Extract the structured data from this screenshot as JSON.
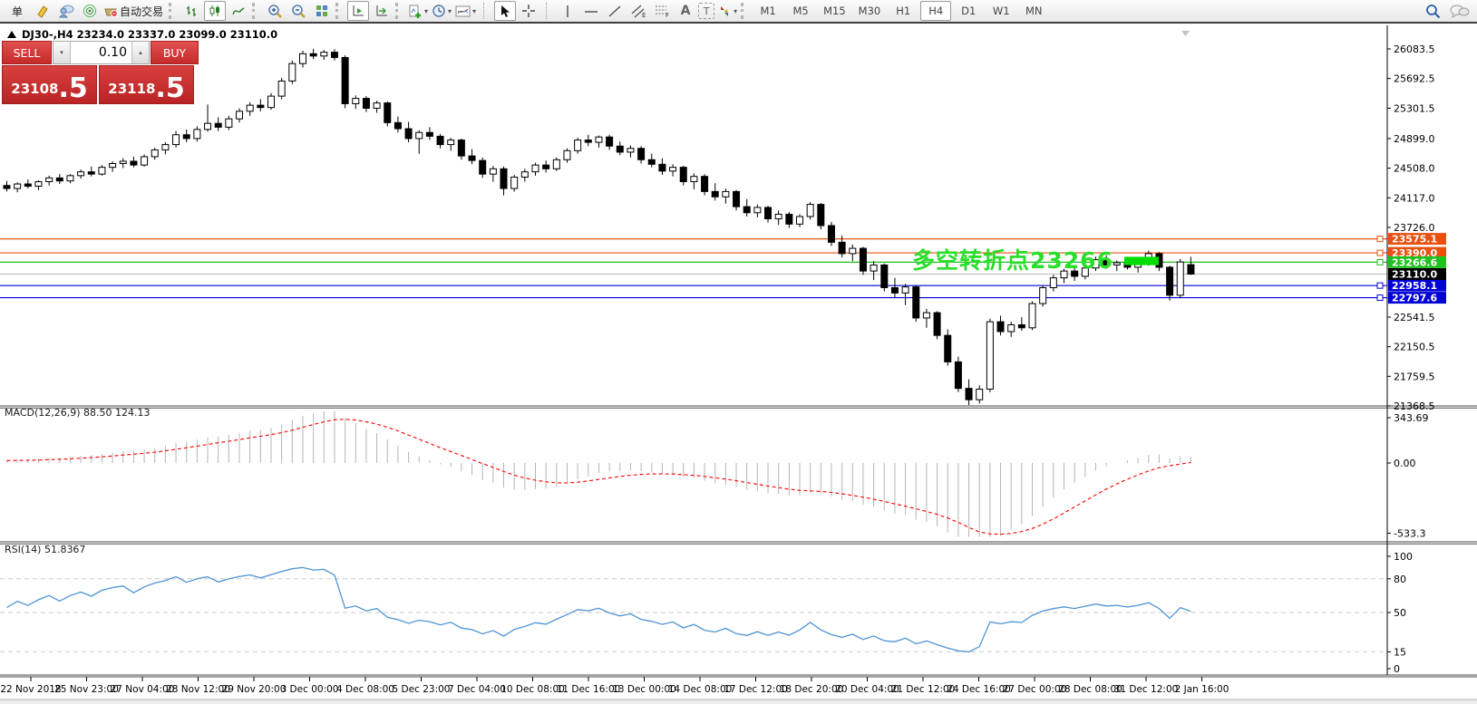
{
  "toolbar": {
    "order_label": "单",
    "autotrading_label": "自动交易",
    "glyphs": {
      "text_tool": "A",
      "label_tool": "T",
      "channel_suffix": "E",
      "fib_suffix": "F"
    },
    "timeframes": [
      "M1",
      "M5",
      "M15",
      "M30",
      "H1",
      "H4",
      "D1",
      "W1",
      "MN"
    ],
    "active_timeframe": "H4"
  },
  "chart": {
    "title": "DJ30-,H4 23234.0 23337.0 23099.0 23110.0",
    "symbol": "DJ30-",
    "period": "H4"
  },
  "trade_panel": {
    "sell_label": "SELL",
    "buy_label": "BUY",
    "volume": "0.10",
    "sell_int": "23108",
    "sell_frac": ".5",
    "buy_int": "23118",
    "buy_frac": ".5"
  },
  "indicator_labels": {
    "macd": "MACD(12,26,9) 88.50 124.13",
    "rsi": "RSI(14) 51.8367"
  },
  "annotation": {
    "text": "多空转折点23266",
    "color": "#2ade2a"
  },
  "chart_data": [
    {
      "type": "candlestick",
      "symbol": "DJ30-",
      "timeframe": "H4",
      "current_open": 23234.0,
      "current_high": 23337.0,
      "current_low": 23099.0,
      "current_close": 23110.0,
      "bid": 23108.5,
      "ask": 23118.5,
      "current_price": 23110.0,
      "y_ticks": [
        26083.5,
        25692.5,
        25301.5,
        24899.0,
        24508.0,
        24117.0,
        23726.0,
        22541.5,
        22150.5,
        21759.5,
        21368.5
      ],
      "price_lines": [
        {
          "price": 23575.1,
          "label": "23575.1",
          "color": "#e8500e"
        },
        {
          "price": 23390.0,
          "label": "23390.0",
          "color": "#e8500e"
        },
        {
          "price": 23266.6,
          "label": "23266.6",
          "color": "#1ec11e"
        },
        {
          "price": 22958.1,
          "label": "22958.1",
          "color": "#0202d6"
        },
        {
          "price": 22797.6,
          "label": "22797.6",
          "color": "#0202d6"
        }
      ],
      "highlight_box": {
        "x": 1240,
        "width": 38,
        "price_top": 23338,
        "price_bottom": 23228,
        "color": "#00dd00"
      },
      "categories": [
        "22 Nov 2018",
        "25 Nov 23:00",
        "27 Nov 04:00",
        "28 Nov 12:00",
        "29 Nov 20:00",
        "3 Dec 00:00",
        "4 Dec 08:00",
        "5 Dec 23:00",
        "7 Dec 04:00",
        "10 Dec 08:00",
        "11 Dec 16:00",
        "13 Dec 00:00",
        "14 Dec 08:00",
        "17 Dec 12:00",
        "18 Dec 20:00",
        "20 Dec 04:00",
        "21 Dec 12:00",
        "24 Dec 16:00",
        "27 Dec 00:00",
        "28 Dec 08:00",
        "31 Dec 12:00",
        "2 Jan 16:00"
      ],
      "ohlc": [
        [
          24280,
          24340,
          24200,
          24240
        ],
        [
          24240,
          24320,
          24190,
          24300
        ],
        [
          24300,
          24360,
          24240,
          24270
        ],
        [
          24270,
          24350,
          24220,
          24330
        ],
        [
          24330,
          24410,
          24280,
          24380
        ],
        [
          24380,
          24430,
          24300,
          24340
        ],
        [
          24340,
          24430,
          24310,
          24410
        ],
        [
          24410,
          24490,
          24370,
          24460
        ],
        [
          24460,
          24530,
          24400,
          24430
        ],
        [
          24430,
          24550,
          24410,
          24520
        ],
        [
          24520,
          24600,
          24460,
          24570
        ],
        [
          24570,
          24640,
          24510,
          24600
        ],
        [
          24600,
          24660,
          24520,
          24550
        ],
        [
          24550,
          24690,
          24530,
          24660
        ],
        [
          24660,
          24780,
          24620,
          24750
        ],
        [
          24750,
          24850,
          24690,
          24820
        ],
        [
          24820,
          25000,
          24780,
          24950
        ],
        [
          24950,
          25020,
          24850,
          24900
        ],
        [
          24900,
          25060,
          24860,
          25020
        ],
        [
          25020,
          25350,
          24990,
          25100
        ],
        [
          25100,
          25180,
          25000,
          25050
        ],
        [
          25050,
          25200,
          25010,
          25160
        ],
        [
          25160,
          25300,
          25110,
          25260
        ],
        [
          25260,
          25380,
          25200,
          25340
        ],
        [
          25340,
          25420,
          25260,
          25310
        ],
        [
          25310,
          25500,
          25280,
          25460
        ],
        [
          25460,
          25700,
          25420,
          25660
        ],
        [
          25660,
          25930,
          25620,
          25890
        ],
        [
          25890,
          26060,
          25840,
          26020
        ],
        [
          26020,
          26083,
          25950,
          25990
        ],
        [
          25990,
          26070,
          25940,
          26040
        ],
        [
          26040,
          26080,
          25930,
          25970
        ],
        [
          25970,
          26000,
          25300,
          25360
        ],
        [
          25360,
          25470,
          25290,
          25430
        ],
        [
          25430,
          25460,
          25250,
          25300
        ],
        [
          25300,
          25400,
          25240,
          25370
        ],
        [
          25370,
          25390,
          25060,
          25110
        ],
        [
          25110,
          25190,
          24980,
          25030
        ],
        [
          25030,
          25120,
          24850,
          24900
        ],
        [
          24900,
          25010,
          24700,
          24980
        ],
        [
          24980,
          25050,
          24880,
          24930
        ],
        [
          24930,
          24960,
          24770,
          24820
        ],
        [
          24820,
          24910,
          24740,
          24880
        ],
        [
          24880,
          24900,
          24620,
          24670
        ],
        [
          24670,
          24760,
          24560,
          24610
        ],
        [
          24610,
          24650,
          24380,
          24430
        ],
        [
          24430,
          24540,
          24330,
          24500
        ],
        [
          24500,
          24530,
          24150,
          24240
        ],
        [
          24240,
          24420,
          24200,
          24390
        ],
        [
          24390,
          24500,
          24330,
          24460
        ],
        [
          24460,
          24580,
          24410,
          24550
        ],
        [
          24550,
          24610,
          24450,
          24500
        ],
        [
          24500,
          24650,
          24470,
          24620
        ],
        [
          24620,
          24770,
          24580,
          24740
        ],
        [
          24740,
          24910,
          24700,
          24880
        ],
        [
          24880,
          24950,
          24800,
          24850
        ],
        [
          24850,
          24940,
          24780,
          24920
        ],
        [
          24920,
          24950,
          24750,
          24800
        ],
        [
          24800,
          24860,
          24680,
          24720
        ],
        [
          24720,
          24810,
          24650,
          24770
        ],
        [
          24770,
          24800,
          24570,
          24620
        ],
        [
          24620,
          24700,
          24520,
          24560
        ],
        [
          24560,
          24640,
          24420,
          24470
        ],
        [
          24470,
          24560,
          24400,
          24520
        ],
        [
          24520,
          24540,
          24280,
          24330
        ],
        [
          24330,
          24440,
          24230,
          24400
        ],
        [
          24400,
          24430,
          24150,
          24200
        ],
        [
          24200,
          24310,
          24080,
          24130
        ],
        [
          24130,
          24240,
          24040,
          24200
        ],
        [
          24200,
          24220,
          23950,
          24000
        ],
        [
          24000,
          24100,
          23870,
          23920
        ],
        [
          23920,
          24030,
          23860,
          23990
        ],
        [
          23990,
          24010,
          23790,
          23840
        ],
        [
          23840,
          23950,
          23760,
          23900
        ],
        [
          23900,
          23930,
          23720,
          23770
        ],
        [
          23770,
          23900,
          23730,
          23870
        ],
        [
          23870,
          24060,
          23830,
          24030
        ],
        [
          24030,
          24050,
          23700,
          23750
        ],
        [
          23750,
          23800,
          23480,
          23530
        ],
        [
          23530,
          23620,
          23330,
          23380
        ],
        [
          23380,
          23500,
          23280,
          23450
        ],
        [
          23450,
          23470,
          23100,
          23150
        ],
        [
          23150,
          23280,
          23030,
          23230
        ],
        [
          23230,
          23250,
          22880,
          22930
        ],
        [
          22930,
          23060,
          22800,
          22860
        ],
        [
          22860,
          22980,
          22700,
          22940
        ],
        [
          22940,
          22960,
          22480,
          22530
        ],
        [
          22530,
          22650,
          22400,
          22600
        ],
        [
          22600,
          22620,
          22250,
          22300
        ],
        [
          22300,
          22380,
          21900,
          21950
        ],
        [
          21950,
          22020,
          21550,
          21600
        ],
        [
          21600,
          21720,
          21380,
          21450
        ],
        [
          21450,
          21640,
          21400,
          21590
        ],
        [
          21590,
          22520,
          21550,
          22480
        ],
        [
          22480,
          22560,
          22300,
          22350
        ],
        [
          22350,
          22480,
          22280,
          22440
        ],
        [
          22440,
          22540,
          22360,
          22400
        ],
        [
          22400,
          22750,
          22370,
          22720
        ],
        [
          22720,
          22960,
          22680,
          22930
        ],
        [
          22930,
          23100,
          22880,
          23060
        ],
        [
          23060,
          23180,
          22990,
          23150
        ],
        [
          23150,
          23200,
          23020,
          23080
        ],
        [
          23080,
          23220,
          23040,
          23190
        ],
        [
          23190,
          23340,
          23150,
          23300
        ],
        [
          23300,
          23360,
          23180,
          23230
        ],
        [
          23230,
          23290,
          23150,
          23260
        ],
        [
          23260,
          23310,
          23170,
          23200
        ],
        [
          23200,
          23300,
          23130,
          23270
        ],
        [
          23270,
          23420,
          23220,
          23380
        ],
        [
          23380,
          23400,
          23150,
          23200
        ],
        [
          23200,
          23220,
          22760,
          22830
        ],
        [
          22830,
          23310,
          22790,
          23270
        ],
        [
          23234,
          23337,
          23099,
          23110
        ]
      ]
    },
    {
      "type": "macd",
      "name": "MACD(12,26,9)",
      "params": [
        12,
        26,
        9
      ],
      "current_main": 88.5,
      "current_signal": 124.13,
      "axis_labels": [
        {
          "v": 343.69,
          "t": "343.69"
        },
        {
          "v": 0,
          "t": "0.00"
        },
        {
          "v": -533.3,
          "t": "-533.3"
        }
      ],
      "histogram_color": "#b5b5b5",
      "signal_color": "#ff0000",
      "note": "histogram and signal derived from ohlc closes"
    },
    {
      "type": "line",
      "name": "RSI(14)",
      "period": 14,
      "current": 51.8367,
      "levels": [
        80,
        50,
        15
      ],
      "axis_labels": [
        100,
        80,
        50,
        15,
        0
      ],
      "color": "#4f94d4",
      "note": "RSI derived from ohlc closes"
    }
  ]
}
